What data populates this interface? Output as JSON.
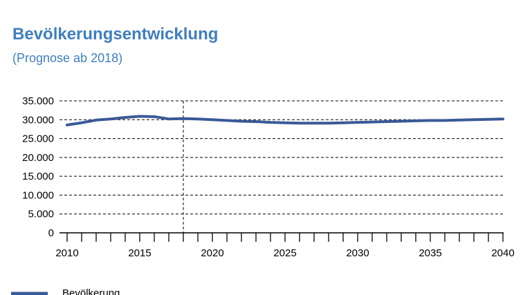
{
  "header": {
    "title": "Bevölkerungsentwicklung",
    "subtitle": "(Prognose ab 2018)"
  },
  "chart_data": {
    "type": "line",
    "title": "Bevölkerungsentwicklung",
    "subtitle": "(Prognose ab 2018)",
    "xlabel": "",
    "ylabel": "",
    "xlim": [
      2010,
      2040
    ],
    "ylim": [
      0,
      35000
    ],
    "x_ticks": [
      2010,
      2015,
      2020,
      2025,
      2030,
      2035,
      2040
    ],
    "x_tick_labels": [
      "2010",
      "2015",
      "2020",
      "2025",
      "2030",
      "2035",
      "2040"
    ],
    "y_ticks": [
      0,
      5000,
      10000,
      15000,
      20000,
      25000,
      30000,
      35000
    ],
    "y_tick_labels": [
      "0",
      "5.000",
      "10.000",
      "15.000",
      "20.000",
      "25.000",
      "30.000",
      "35.000"
    ],
    "grid": "horizontal dashed",
    "forecast_start_year": 2018,
    "legend_position": "bottom-left",
    "line_color": "#3a5998",
    "series": [
      {
        "name": "Bevölkerung",
        "x": [
          2010,
          2011,
          2012,
          2013,
          2014,
          2015,
          2016,
          2017,
          2018,
          2019,
          2020,
          2021,
          2022,
          2023,
          2024,
          2025,
          2026,
          2027,
          2028,
          2029,
          2030,
          2031,
          2032,
          2033,
          2034,
          2035,
          2036,
          2037,
          2038,
          2039,
          2040
        ],
        "y": [
          28600,
          29200,
          29900,
          30200,
          30600,
          30900,
          30800,
          30200,
          30300,
          30200,
          30000,
          29800,
          29600,
          29500,
          29300,
          29200,
          29100,
          29100,
          29100,
          29200,
          29300,
          29400,
          29500,
          29600,
          29700,
          29800,
          29800,
          29900,
          30000,
          30100,
          30200
        ]
      }
    ]
  }
}
